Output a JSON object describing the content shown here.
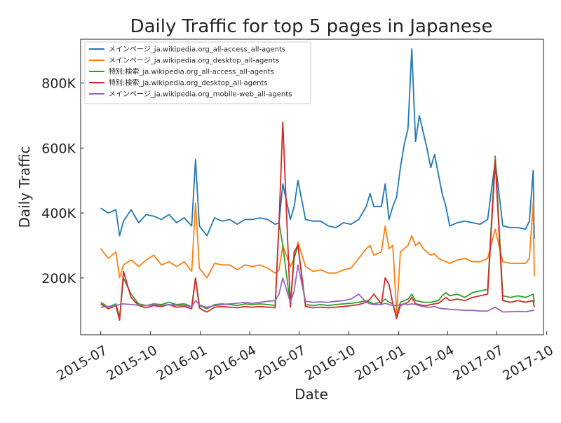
{
  "chart_data": {
    "type": "line",
    "title": "Daily Traffic for top 5 pages in Japanese",
    "xlabel": "Date",
    "ylabel": "Daily Traffic",
    "xlim": [
      "2015-05-25",
      "2017-09-25"
    ],
    "ylim": [
      25000,
      935000
    ],
    "grid": false,
    "legend_position": "top-left",
    "x_ticks": [
      {
        "date": "2015-07-01",
        "label": "2015-07"
      },
      {
        "date": "2015-10-01",
        "label": "2015-10"
      },
      {
        "date": "2016-01-01",
        "label": "2016-01"
      },
      {
        "date": "2016-04-01",
        "label": "2016-04"
      },
      {
        "date": "2016-07-01",
        "label": "2016-07"
      },
      {
        "date": "2016-10-01",
        "label": "2016-10"
      },
      {
        "date": "2017-01-01",
        "label": "2017-01"
      },
      {
        "date": "2017-04-01",
        "label": "2017-04"
      },
      {
        "date": "2017-07-01",
        "label": "2017-07"
      },
      {
        "date": "2017-10-01",
        "label": "2017-10"
      }
    ],
    "y_ticks": [
      {
        "value": 200000,
        "label": "200K"
      },
      {
        "value": 400000,
        "label": "400K"
      },
      {
        "value": 600000,
        "label": "600K"
      },
      {
        "value": 800000,
        "label": "800K"
      }
    ],
    "series": [
      {
        "name": "メインページ_ja.wikipedia.org_all-access_all-agents",
        "color": "#1f77b4",
        "x": [
          "2015-07-01",
          "2015-07-15",
          "2015-07-29",
          "2015-08-05",
          "2015-08-12",
          "2015-08-26",
          "2015-09-09",
          "2015-09-23",
          "2015-10-07",
          "2015-10-21",
          "2015-11-04",
          "2015-11-18",
          "2015-12-02",
          "2015-12-16",
          "2015-12-23",
          "2015-12-30",
          "2016-01-06",
          "2016-01-13",
          "2016-01-27",
          "2016-02-10",
          "2016-02-24",
          "2016-03-09",
          "2016-03-23",
          "2016-04-06",
          "2016-04-20",
          "2016-05-04",
          "2016-05-18",
          "2016-05-25",
          "2016-06-01",
          "2016-06-15",
          "2016-06-22",
          "2016-06-29",
          "2016-07-13",
          "2016-07-27",
          "2016-08-10",
          "2016-08-24",
          "2016-09-07",
          "2016-09-21",
          "2016-10-05",
          "2016-10-19",
          "2016-11-02",
          "2016-11-09",
          "2016-11-16",
          "2016-11-30",
          "2016-12-07",
          "2016-12-14",
          "2016-12-21",
          "2016-12-28",
          "2017-01-04",
          "2017-01-11",
          "2017-01-18",
          "2017-01-25",
          "2017-02-01",
          "2017-02-08",
          "2017-02-15",
          "2017-02-22",
          "2017-03-01",
          "2017-03-08",
          "2017-03-15",
          "2017-03-22",
          "2017-03-29",
          "2017-04-05",
          "2017-04-19",
          "2017-05-03",
          "2017-05-17",
          "2017-05-31",
          "2017-06-14",
          "2017-06-28",
          "2017-07-12",
          "2017-07-26",
          "2017-08-09",
          "2017-08-23",
          "2017-08-30",
          "2017-09-06",
          "2017-09-08"
        ],
        "values": [
          415000,
          400000,
          410000,
          330000,
          375000,
          410000,
          370000,
          395000,
          390000,
          380000,
          395000,
          370000,
          385000,
          360000,
          565000,
          360000,
          345000,
          330000,
          385000,
          375000,
          380000,
          365000,
          380000,
          380000,
          385000,
          380000,
          365000,
          370000,
          490000,
          380000,
          420000,
          500000,
          380000,
          375000,
          375000,
          360000,
          355000,
          370000,
          365000,
          380000,
          420000,
          460000,
          420000,
          420000,
          490000,
          380000,
          420000,
          450000,
          540000,
          610000,
          660000,
          905000,
          620000,
          700000,
          650000,
          600000,
          540000,
          580000,
          520000,
          460000,
          420000,
          360000,
          370000,
          375000,
          370000,
          365000,
          380000,
          560000,
          360000,
          355000,
          355000,
          350000,
          375000,
          530000,
          320000
        ]
      },
      {
        "name": "メインページ_ja.wikipedia.org_desktop_all-agents",
        "color": "#ff7f0e",
        "x": [
          "2015-07-01",
          "2015-07-15",
          "2015-07-29",
          "2015-08-05",
          "2015-08-12",
          "2015-08-26",
          "2015-09-09",
          "2015-09-23",
          "2015-10-07",
          "2015-10-21",
          "2015-11-04",
          "2015-11-18",
          "2015-12-02",
          "2015-12-16",
          "2015-12-23",
          "2015-12-30",
          "2016-01-06",
          "2016-01-13",
          "2016-01-27",
          "2016-02-10",
          "2016-02-24",
          "2016-03-09",
          "2016-03-23",
          "2016-04-06",
          "2016-04-20",
          "2016-05-04",
          "2016-05-18",
          "2016-05-25",
          "2016-06-01",
          "2016-06-15",
          "2016-06-22",
          "2016-06-29",
          "2016-07-13",
          "2016-07-27",
          "2016-08-10",
          "2016-08-24",
          "2016-09-07",
          "2016-09-21",
          "2016-10-05",
          "2016-10-19",
          "2016-11-02",
          "2016-11-09",
          "2016-11-16",
          "2016-11-30",
          "2016-12-07",
          "2016-12-14",
          "2016-12-21",
          "2016-12-28",
          "2017-01-04",
          "2017-01-11",
          "2017-01-18",
          "2017-01-25",
          "2017-02-01",
          "2017-02-08",
          "2017-02-15",
          "2017-02-22",
          "2017-03-01",
          "2017-03-08",
          "2017-03-15",
          "2017-03-22",
          "2017-03-29",
          "2017-04-05",
          "2017-04-19",
          "2017-05-03",
          "2017-05-17",
          "2017-05-31",
          "2017-06-14",
          "2017-06-28",
          "2017-07-12",
          "2017-07-26",
          "2017-08-09",
          "2017-08-23",
          "2017-08-30",
          "2017-09-06",
          "2017-09-08"
        ],
        "values": [
          290000,
          260000,
          280000,
          200000,
          240000,
          255000,
          235000,
          255000,
          270000,
          240000,
          250000,
          235000,
          250000,
          220000,
          430000,
          230000,
          215000,
          200000,
          245000,
          240000,
          240000,
          225000,
          240000,
          235000,
          240000,
          230000,
          215000,
          225000,
          300000,
          235000,
          260000,
          310000,
          235000,
          220000,
          225000,
          215000,
          215000,
          225000,
          230000,
          260000,
          290000,
          300000,
          270000,
          280000,
          360000,
          290000,
          300000,
          90000,
          280000,
          290000,
          300000,
          330000,
          300000,
          310000,
          290000,
          280000,
          270000,
          275000,
          260000,
          255000,
          250000,
          245000,
          255000,
          260000,
          250000,
          250000,
          260000,
          350000,
          250000,
          245000,
          245000,
          245000,
          260000,
          430000,
          205000
        ]
      },
      {
        "name": "特別:検索_ja.wikipedia.org_all-access_all-agents",
        "color": "#2ca02c",
        "x": [
          "2015-07-01",
          "2015-07-15",
          "2015-07-29",
          "2015-08-05",
          "2015-08-12",
          "2015-08-26",
          "2015-09-09",
          "2015-09-23",
          "2015-10-07",
          "2015-10-21",
          "2015-11-04",
          "2015-11-18",
          "2015-12-02",
          "2015-12-16",
          "2015-12-23",
          "2015-12-30",
          "2016-01-06",
          "2016-01-13",
          "2016-01-27",
          "2016-02-10",
          "2016-02-24",
          "2016-03-09",
          "2016-03-23",
          "2016-04-06",
          "2016-04-20",
          "2016-05-04",
          "2016-05-18",
          "2016-05-25",
          "2016-06-01",
          "2016-06-15",
          "2016-06-22",
          "2016-06-29",
          "2016-07-13",
          "2016-07-27",
          "2016-08-10",
          "2016-08-24",
          "2016-09-07",
          "2016-09-21",
          "2016-10-05",
          "2016-10-19",
          "2016-11-02",
          "2016-11-09",
          "2016-11-16",
          "2016-11-30",
          "2016-12-07",
          "2016-12-14",
          "2016-12-21",
          "2016-12-28",
          "2017-01-04",
          "2017-01-11",
          "2017-01-18",
          "2017-01-25",
          "2017-02-01",
          "2017-02-08",
          "2017-02-15",
          "2017-02-22",
          "2017-03-01",
          "2017-03-08",
          "2017-03-15",
          "2017-03-22",
          "2017-03-29",
          "2017-04-05",
          "2017-04-19",
          "2017-05-03",
          "2017-05-17",
          "2017-05-31",
          "2017-06-14",
          "2017-06-28",
          "2017-07-12",
          "2017-07-26",
          "2017-08-09",
          "2017-08-23",
          "2017-08-30",
          "2017-09-06",
          "2017-09-08"
        ],
        "values": [
          125000,
          110000,
          120000,
          80000,
          200000,
          150000,
          120000,
          115000,
          120000,
          118000,
          125000,
          118000,
          120000,
          112000,
          200000,
          115000,
          110000,
          105000,
          118000,
          120000,
          118000,
          115000,
          120000,
          118000,
          120000,
          118000,
          115000,
          370000,
          300000,
          115000,
          260000,
          300000,
          118000,
          115000,
          118000,
          115000,
          118000,
          120000,
          122000,
          125000,
          130000,
          125000,
          120000,
          125000,
          135000,
          125000,
          120000,
          80000,
          125000,
          130000,
          135000,
          150000,
          130000,
          128000,
          125000,
          125000,
          125000,
          128000,
          130000,
          145000,
          155000,
          145000,
          150000,
          140000,
          155000,
          160000,
          165000,
          575000,
          145000,
          140000,
          145000,
          140000,
          145000,
          150000,
          125000
        ]
      },
      {
        "name": "特別:検索_ja.wikipedia.org_desktop_all-agents",
        "color": "#d62728",
        "x": [
          "2015-07-01",
          "2015-07-15",
          "2015-07-29",
          "2015-08-05",
          "2015-08-12",
          "2015-08-26",
          "2015-09-09",
          "2015-09-23",
          "2015-10-07",
          "2015-10-21",
          "2015-11-04",
          "2015-11-18",
          "2015-12-02",
          "2015-12-16",
          "2015-12-23",
          "2015-12-30",
          "2016-01-06",
          "2016-01-13",
          "2016-01-27",
          "2016-02-10",
          "2016-02-24",
          "2016-03-09",
          "2016-03-23",
          "2016-04-06",
          "2016-04-20",
          "2016-05-04",
          "2016-05-18",
          "2016-05-25",
          "2016-06-01",
          "2016-06-15",
          "2016-06-22",
          "2016-06-29",
          "2016-07-13",
          "2016-07-27",
          "2016-08-10",
          "2016-08-24",
          "2016-09-07",
          "2016-09-21",
          "2016-10-05",
          "2016-10-19",
          "2016-11-02",
          "2016-11-09",
          "2016-11-16",
          "2016-11-30",
          "2016-12-07",
          "2016-12-14",
          "2016-12-21",
          "2016-12-28",
          "2017-01-04",
          "2017-01-11",
          "2017-01-18",
          "2017-01-25",
          "2017-02-01",
          "2017-02-08",
          "2017-02-15",
          "2017-02-22",
          "2017-03-01",
          "2017-03-08",
          "2017-03-15",
          "2017-03-22",
          "2017-03-29",
          "2017-04-05",
          "2017-04-19",
          "2017-05-03",
          "2017-05-17",
          "2017-05-31",
          "2017-06-14",
          "2017-06-28",
          "2017-07-12",
          "2017-07-26",
          "2017-08-09",
          "2017-08-23",
          "2017-08-30",
          "2017-09-06",
          "2017-09-08"
        ],
        "values": [
          120000,
          105000,
          115000,
          70000,
          220000,
          140000,
          115000,
          108000,
          115000,
          112000,
          118000,
          110000,
          112000,
          105000,
          200000,
          108000,
          100000,
          95000,
          110000,
          112000,
          110000,
          108000,
          112000,
          110000,
          112000,
          110000,
          108000,
          370000,
          680000,
          110000,
          280000,
          300000,
          112000,
          108000,
          110000,
          108000,
          110000,
          112000,
          115000,
          118000,
          125000,
          135000,
          150000,
          120000,
          200000,
          180000,
          120000,
          75000,
          115000,
          120000,
          125000,
          140000,
          120000,
          118000,
          115000,
          115000,
          118000,
          120000,
          122000,
          130000,
          140000,
          130000,
          135000,
          130000,
          140000,
          145000,
          150000,
          560000,
          130000,
          125000,
          130000,
          125000,
          128000,
          130000,
          110000
        ]
      },
      {
        "name": "メインページ_ja.wikipedia.org_mobile-web_all-agents",
        "color": "#9467bd",
        "x": [
          "2015-07-01",
          "2015-07-15",
          "2015-07-29",
          "2015-08-05",
          "2015-08-12",
          "2015-08-26",
          "2015-09-09",
          "2015-09-23",
          "2015-10-07",
          "2015-10-21",
          "2015-11-04",
          "2015-11-18",
          "2015-12-02",
          "2015-12-16",
          "2015-12-23",
          "2015-12-30",
          "2016-01-06",
          "2016-01-13",
          "2016-01-27",
          "2016-02-10",
          "2016-02-24",
          "2016-03-09",
          "2016-03-23",
          "2016-04-06",
          "2016-04-20",
          "2016-05-04",
          "2016-05-18",
          "2016-05-25",
          "2016-06-01",
          "2016-06-15",
          "2016-06-22",
          "2016-06-29",
          "2016-07-13",
          "2016-07-27",
          "2016-08-10",
          "2016-08-24",
          "2016-09-07",
          "2016-09-21",
          "2016-10-05",
          "2016-10-19",
          "2016-11-02",
          "2016-11-09",
          "2016-11-16",
          "2016-11-30",
          "2016-12-07",
          "2016-12-14",
          "2016-12-21",
          "2016-12-28",
          "2017-01-04",
          "2017-01-11",
          "2017-01-18",
          "2017-01-25",
          "2017-02-01",
          "2017-02-08",
          "2017-02-15",
          "2017-02-22",
          "2017-03-01",
          "2017-03-08",
          "2017-03-15",
          "2017-03-22",
          "2017-03-29",
          "2017-04-05",
          "2017-04-19",
          "2017-05-03",
          "2017-05-17",
          "2017-05-31",
          "2017-06-14",
          "2017-06-28",
          "2017-07-12",
          "2017-07-26",
          "2017-08-09",
          "2017-08-23",
          "2017-08-30",
          "2017-09-06",
          "2017-09-08"
        ],
        "values": [
          110000,
          112000,
          115000,
          118000,
          120000,
          118000,
          116000,
          115000,
          118000,
          115000,
          118000,
          116000,
          115000,
          112000,
          130000,
          118000,
          112000,
          110000,
          115000,
          118000,
          120000,
          122000,
          125000,
          122000,
          125000,
          128000,
          130000,
          150000,
          200000,
          125000,
          160000,
          240000,
          128000,
          125000,
          126000,
          125000,
          128000,
          130000,
          135000,
          150000,
          125000,
          120000,
          118000,
          118000,
          122000,
          118000,
          115000,
          115000,
          118000,
          120000,
          118000,
          120000,
          118000,
          115000,
          112000,
          110000,
          110000,
          112000,
          108000,
          105000,
          105000,
          103000,
          102000,
          100000,
          100000,
          98000,
          98000,
          110000,
          95000,
          96000,
          97000,
          96000,
          98000,
          100000,
          100000
        ]
      }
    ]
  }
}
